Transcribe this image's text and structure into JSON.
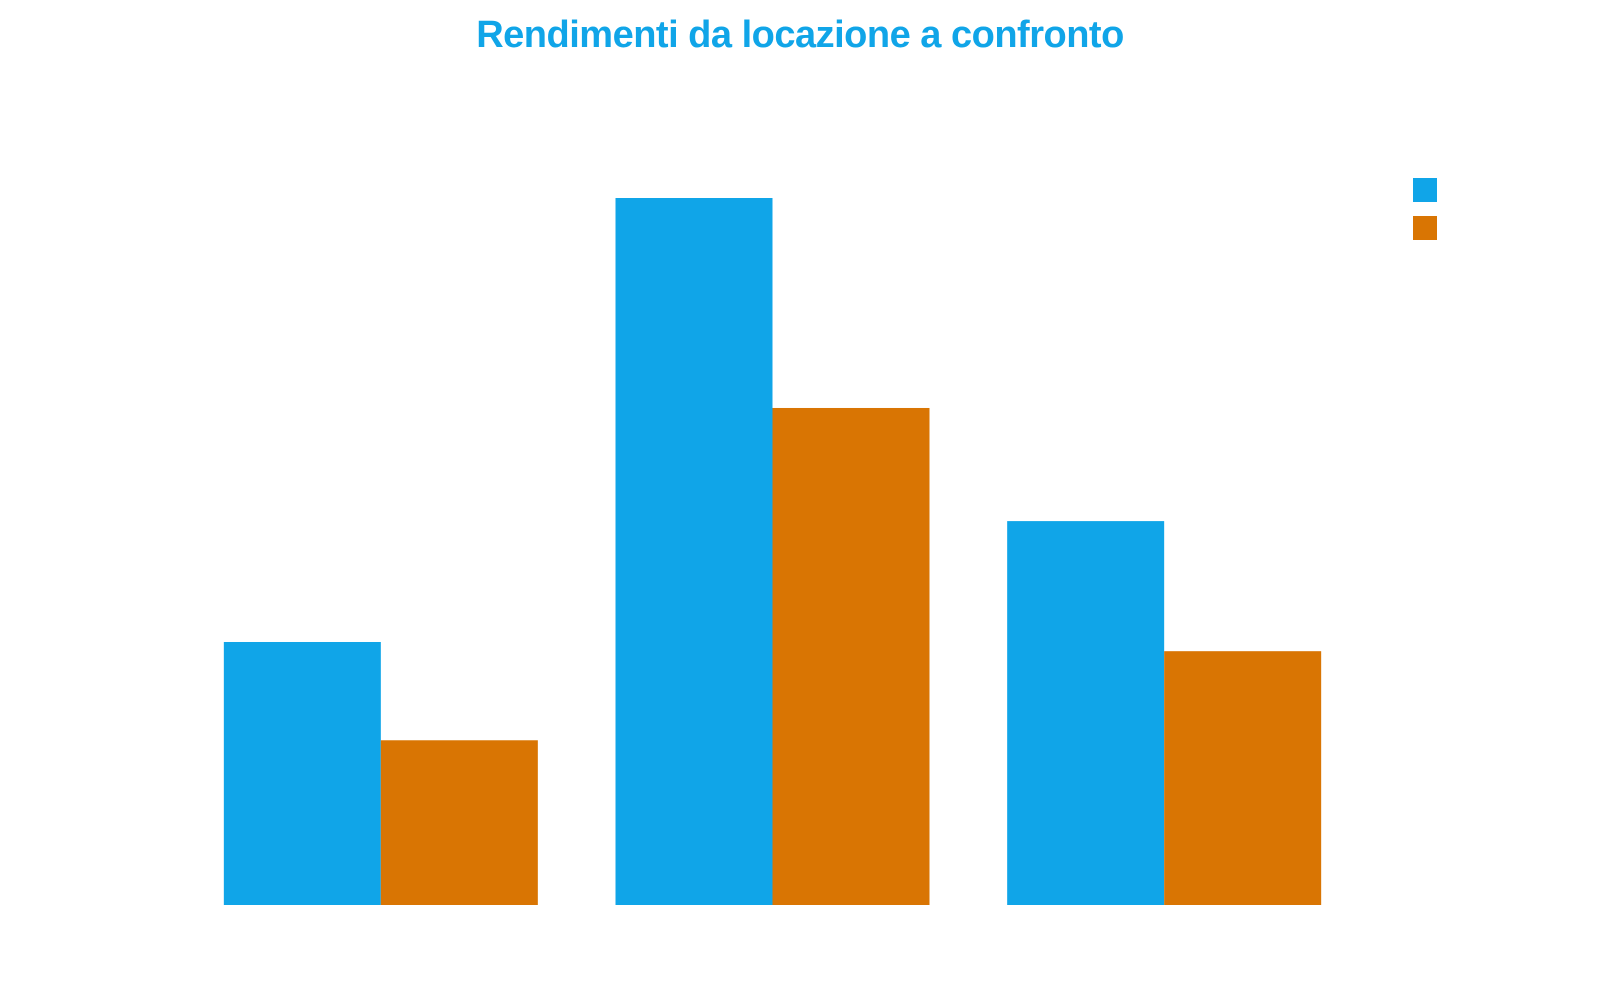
{
  "chart_data": {
    "type": "bar",
    "title": "Rendimenti da locazione a confronto",
    "xlabel": "",
    "ylabel": "",
    "categories": [
      "",
      "",
      ""
    ],
    "series": [
      {
        "values": [
          3.72,
          10.0,
          5.43
        ]
      },
      {
        "values": [
          2.33,
          7.03,
          3.59
        ]
      }
    ],
    "ylim": [
      0,
      10.0
    ],
    "grid": false,
    "legend": "top-right"
  },
  "colors": {
    "title": "#10a5e8",
    "series": [
      "#10a5e8",
      "#d97503"
    ]
  }
}
